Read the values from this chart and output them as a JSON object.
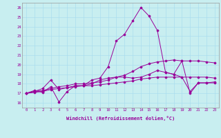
{
  "xlabel": "Windchill (Refroidissement éolien,°C)",
  "background_color": "#c8eef0",
  "grid_color": "#aaddee",
  "line_color": "#990099",
  "x_ticks": [
    0,
    1,
    2,
    3,
    4,
    5,
    6,
    7,
    8,
    9,
    10,
    11,
    12,
    13,
    14,
    15,
    16,
    17,
    18,
    19,
    20,
    21,
    22,
    23
  ],
  "y_ticks": [
    16,
    17,
    18,
    19,
    20,
    21,
    22,
    23,
    24,
    25,
    26
  ],
  "xlim": [
    -0.5,
    23.5
  ],
  "ylim": [
    15.5,
    26.5
  ],
  "series": [
    [
      17.0,
      17.3,
      17.1,
      17.7,
      16.1,
      17.2,
      17.8,
      17.8,
      18.4,
      18.6,
      19.8,
      22.5,
      23.2,
      24.6,
      26.0,
      25.1,
      23.6,
      19.2,
      19.0,
      20.4,
      17.0,
      18.1,
      18.1,
      18.1
    ],
    [
      17.0,
      17.2,
      17.3,
      17.5,
      17.7,
      17.8,
      18.0,
      18.0,
      18.1,
      18.2,
      18.4,
      18.7,
      18.9,
      19.3,
      19.8,
      20.1,
      20.3,
      20.4,
      20.5,
      20.4,
      20.4,
      20.4,
      20.3,
      20.2
    ],
    [
      17.0,
      17.1,
      17.2,
      17.4,
      17.5,
      17.6,
      17.7,
      17.8,
      17.8,
      17.9,
      18.0,
      18.1,
      18.2,
      18.3,
      18.5,
      18.6,
      18.7,
      18.7,
      18.7,
      18.7,
      18.7,
      18.7,
      18.7,
      18.6
    ],
    [
      17.0,
      17.2,
      17.5,
      18.4,
      17.4,
      17.6,
      17.8,
      17.8,
      18.0,
      18.4,
      18.6,
      18.7,
      18.7,
      18.6,
      18.7,
      19.0,
      19.4,
      19.2,
      19.0,
      18.7,
      17.2,
      18.1,
      18.1,
      18.2
    ]
  ],
  "figsize": [
    3.2,
    2.0
  ],
  "dpi": 100
}
